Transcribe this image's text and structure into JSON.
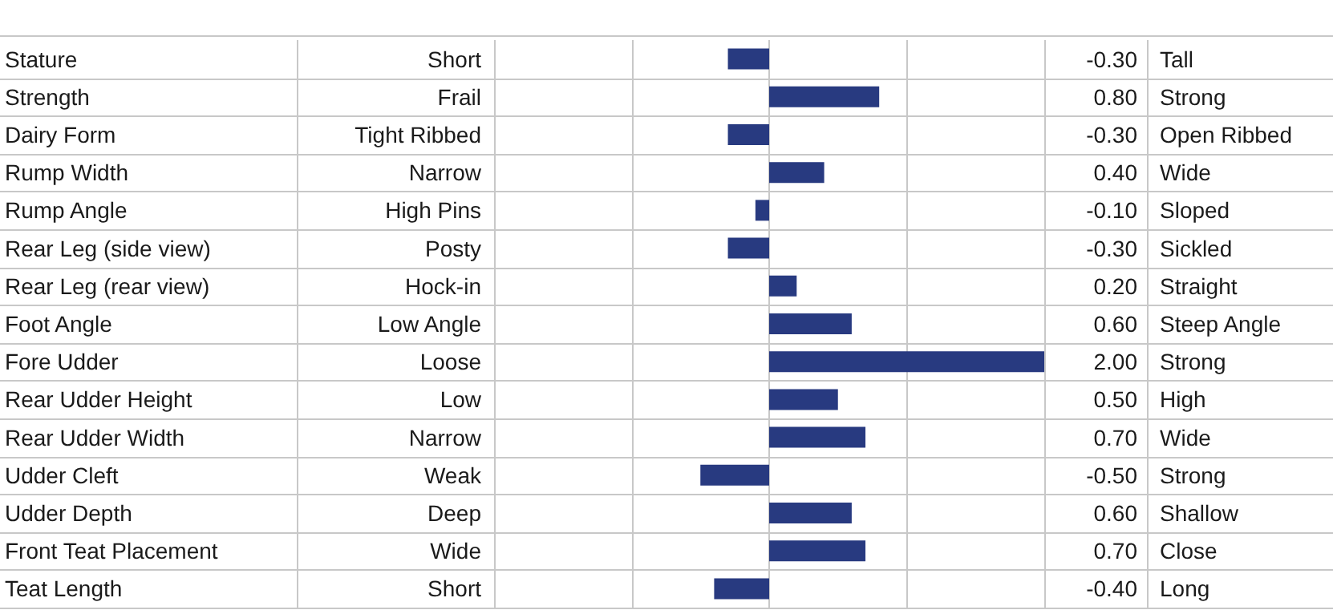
{
  "chart_data": {
    "type": "bar",
    "orientation": "horizontal",
    "categories": [
      "Stature",
      "Strength",
      "Dairy Form",
      "Rump Width",
      "Rump Angle",
      "Rear Leg (side view)",
      "Rear Leg (rear view)",
      "Foot Angle",
      "Fore Udder",
      "Rear Udder Height",
      "Rear Udder Width",
      "Udder Cleft",
      "Udder Depth",
      "Front Teat Placement",
      "Teat Length"
    ],
    "values": [
      -0.3,
      0.8,
      -0.3,
      0.4,
      -0.1,
      -0.3,
      0.2,
      0.6,
      2.0,
      0.5,
      0.7,
      -0.5,
      0.6,
      0.7,
      -0.4
    ],
    "value_labels": [
      "-0.30",
      "0.80",
      "-0.30",
      "0.40",
      "-0.10",
      "-0.30",
      "0.20",
      "0.60",
      "2.00",
      "0.50",
      "0.70",
      "-0.50",
      "0.60",
      "0.70",
      "-0.40"
    ],
    "color": "#283a80",
    "xlim": [
      -2,
      2
    ],
    "xticks": [
      {
        "value": -2,
        "label": null
      },
      {
        "value": -1,
        "label": null
      },
      {
        "value": 0,
        "label": null
      },
      {
        "value": 1,
        "label": null
      },
      {
        "value": 2,
        "label": null
      }
    ],
    "grid": "x",
    "tick_labels": "y",
    "annotations": [
      "Short",
      "Tall",
      "Frail",
      "Strong",
      "Tight Ribbed",
      "Open Ribbed",
      "Narrow",
      "Wide",
      "High Pins",
      "Sloped",
      "Posty",
      "Sickled",
      "Hock-in",
      "Straight",
      "Low Angle",
      "Steep Angle",
      "Loose",
      "Strong",
      "Low",
      "High",
      "Narrow",
      "Wide",
      "Weak",
      "Strong",
      "Deep",
      "Shallow",
      "Wide",
      "Close",
      "Short",
      "Long"
    ]
  }
}
